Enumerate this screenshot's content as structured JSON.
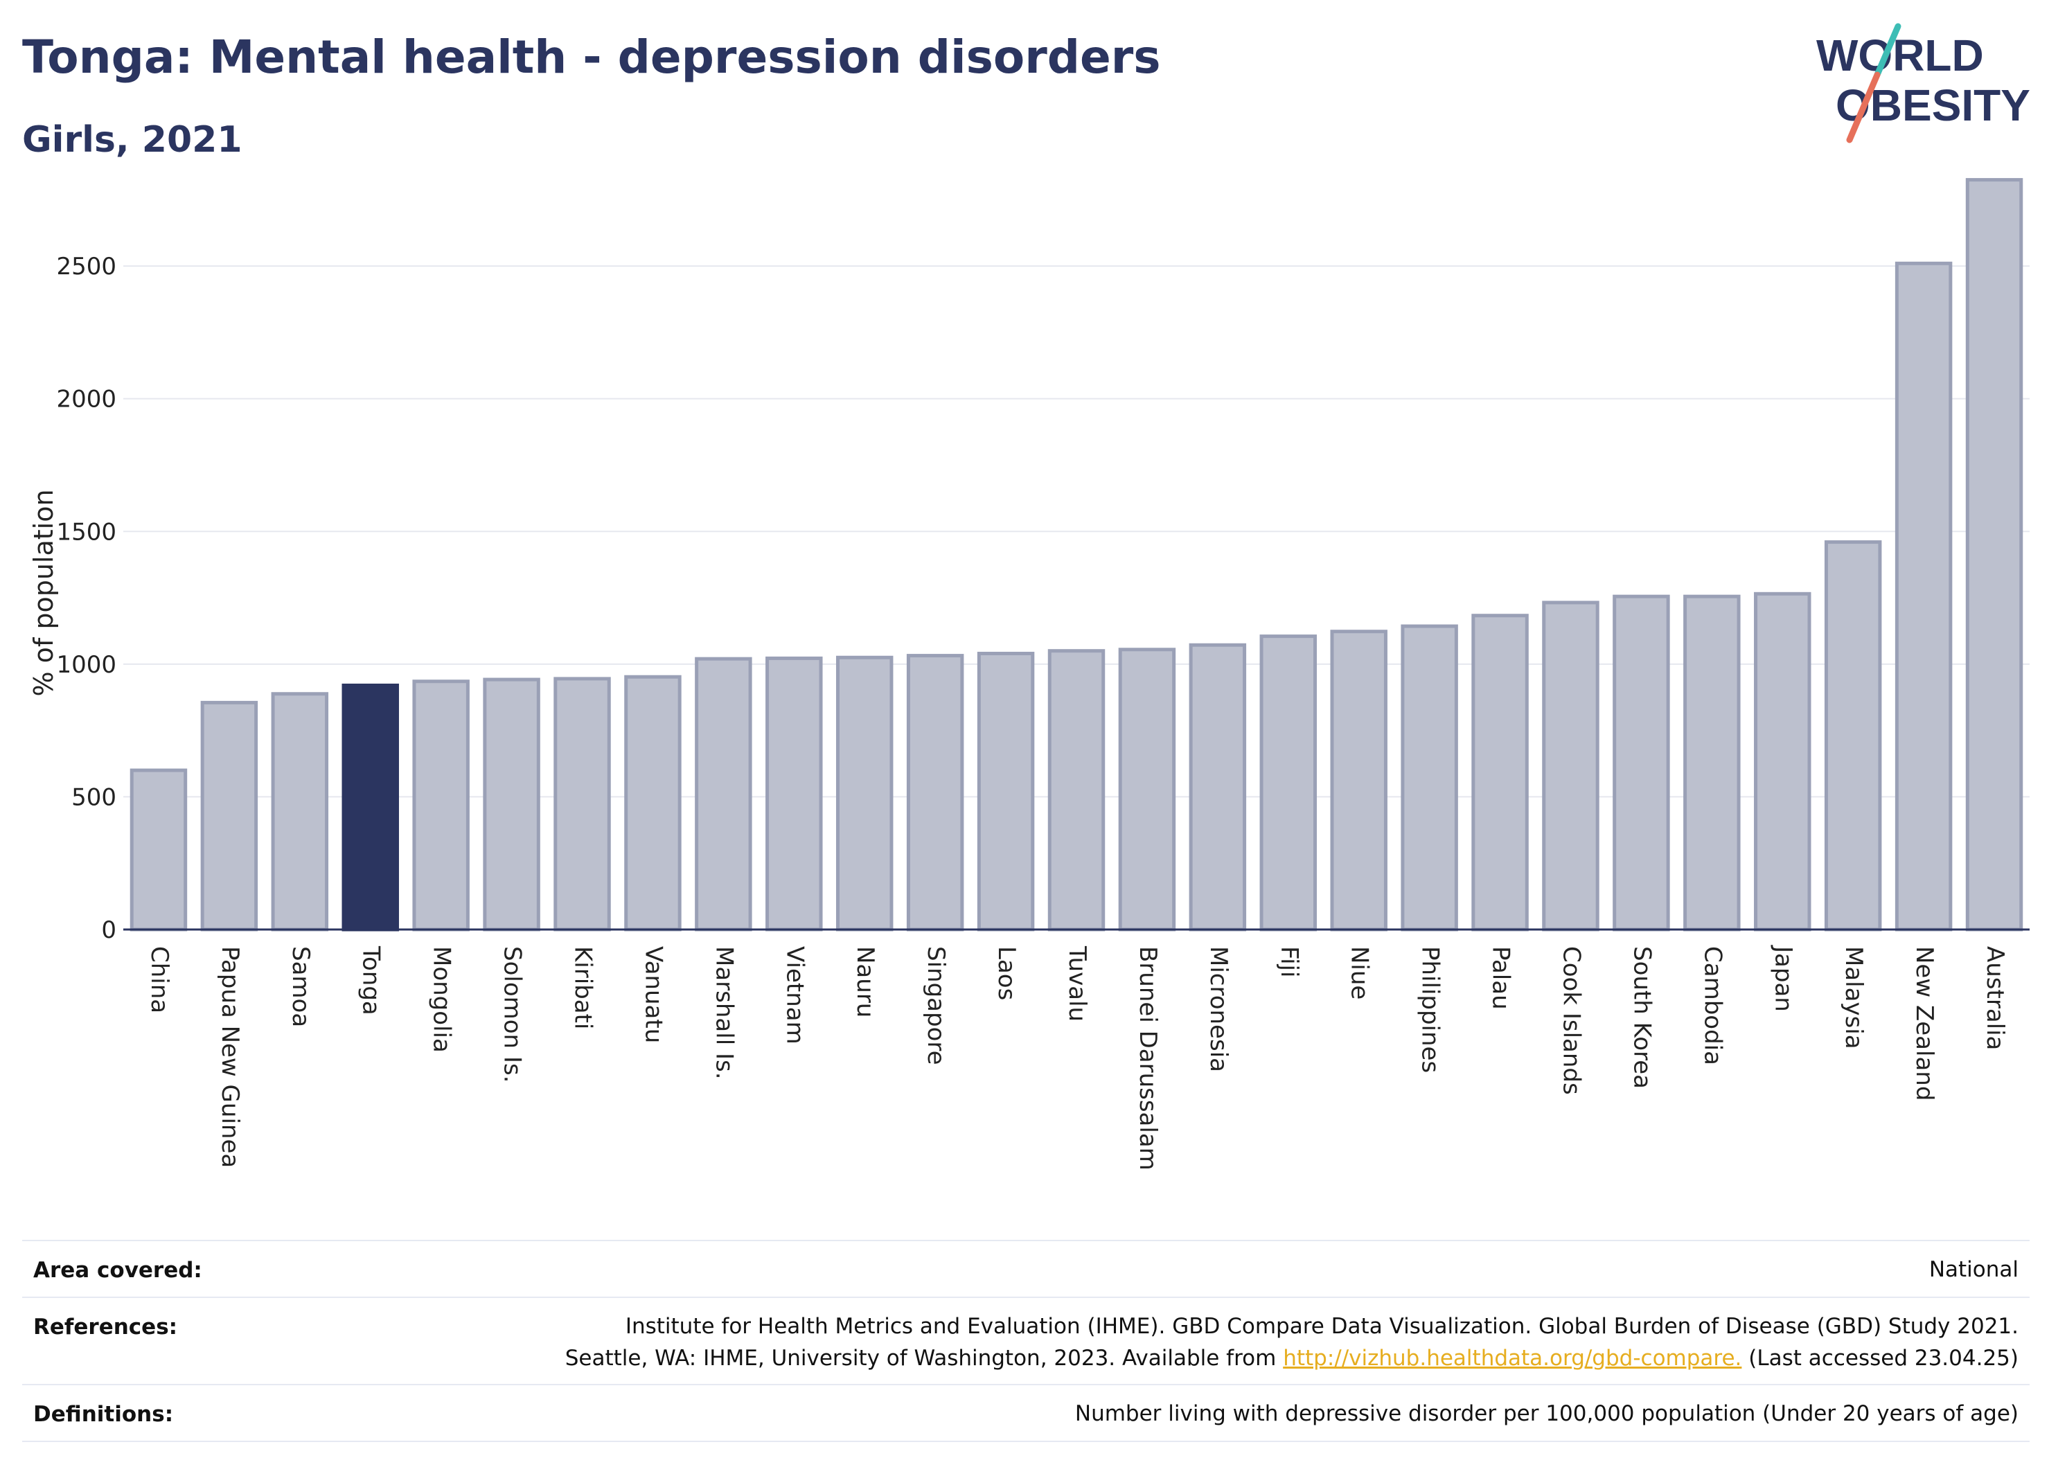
{
  "header": {
    "title": "Tonga: Mental health - depression disorders",
    "subtitle": "Girls, 2021"
  },
  "logo": {
    "line1": "WORLD",
    "line2": "OBESITY",
    "accent_colors": [
      "#3dbdb5",
      "#e6705a"
    ]
  },
  "colors": {
    "highlight": "#2b3560",
    "bar_fill": "#bcc0ce",
    "bar_stroke": "#9aa0b6",
    "gridline": "#e6e8ef",
    "axis": "#2b3560"
  },
  "chart_data": {
    "type": "bar",
    "ylabel": "% of population",
    "ylim": [
      0,
      2850
    ],
    "yticks": [
      0,
      500,
      1000,
      1500,
      2000,
      2500
    ],
    "highlight": "Tonga",
    "categories": [
      "China",
      "Papua New Guinea",
      "Samoa",
      "Tonga",
      "Mongolia",
      "Solomon Is.",
      "Kiribati",
      "Vanuatu",
      "Marshall Is.",
      "Vietnam",
      "Nauru",
      "Singapore",
      "Laos",
      "Tuvalu",
      "Brunei Darussalam",
      "Micronesia",
      "Fiji",
      "Niue",
      "Philippines",
      "Palau",
      "Cook Islands",
      "South Korea",
      "Cambodia",
      "Japan",
      "Malaysia",
      "New Zealand",
      "Australia"
    ],
    "values": [
      600,
      855,
      888,
      920,
      935,
      942,
      945,
      952,
      1020,
      1022,
      1025,
      1032,
      1040,
      1050,
      1055,
      1072,
      1105,
      1123,
      1143,
      1183,
      1232,
      1255,
      1255,
      1265,
      1460,
      2510,
      2825
    ]
  },
  "footer": {
    "area_label": "Area covered:",
    "area_value": "National",
    "references_label": "References:",
    "references_line1": "Institute for Health Metrics and Evaluation (IHME). GBD Compare Data Visualization. Global Burden of Disease (GBD) Study 2021.",
    "references_line2_pre": "Seattle, WA: IHME, University of Washington, 2023. Available from ",
    "references_link": "http://vizhub.healthdata.org/gbd-compare.",
    "references_line2_post": " (Last accessed 23.04.25)",
    "definitions_label": "Definitions:",
    "definitions_value": "Number living with depressive disorder per 100,000 population (Under 20 years of age)"
  }
}
